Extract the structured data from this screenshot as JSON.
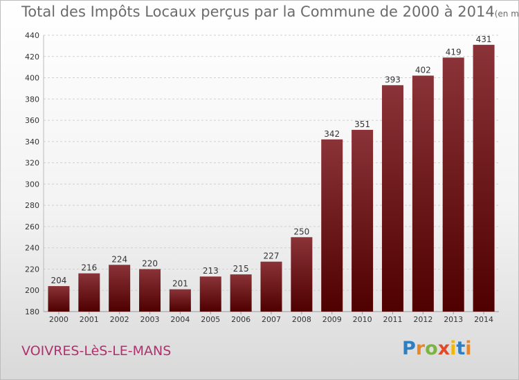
{
  "title": "Total des Impôts Locaux perçus par la Commune de 2000 à 2014",
  "unit_note": "(en milliers d'€)",
  "commune": "VOIVRES-LèS-LE-MANS",
  "brand": {
    "text": "Proxiti",
    "letter_colors": [
      "#2d7fc1",
      "#e8862a",
      "#7cb342",
      "#e04a2a",
      "#f2b705",
      "#2d7fc1",
      "#e8862a"
    ]
  },
  "colors": {
    "bar_top": "#8a3338",
    "bar_bottom": "#4f0000",
    "grid": "#cfcfcf",
    "axis_text": "#333333"
  },
  "chart_data": {
    "type": "bar",
    "categories": [
      "2000",
      "2001",
      "2002",
      "2003",
      "2004",
      "2005",
      "2006",
      "2007",
      "2008",
      "2009",
      "2010",
      "2011",
      "2012",
      "2013",
      "2014"
    ],
    "values": [
      204,
      216,
      224,
      220,
      201,
      213,
      215,
      227,
      250,
      342,
      351,
      393,
      402,
      419,
      431
    ],
    "ylim": [
      180,
      440
    ],
    "yticks": [
      180,
      200,
      220,
      240,
      260,
      280,
      300,
      320,
      340,
      360,
      380,
      400,
      420,
      440
    ],
    "grid": true,
    "data_labels": true
  }
}
